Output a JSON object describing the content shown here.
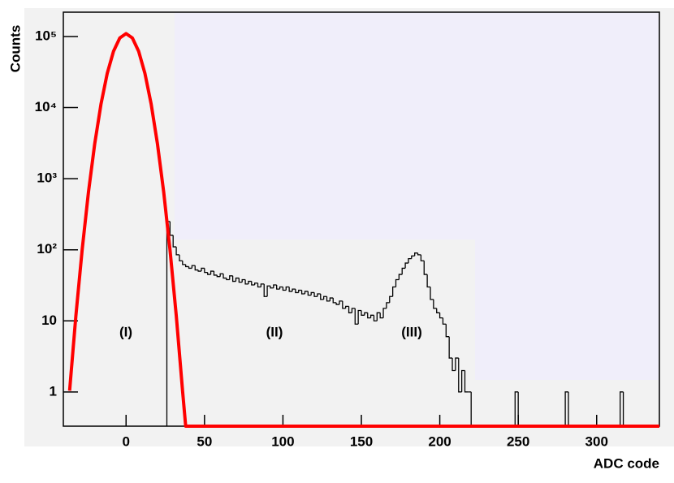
{
  "chart_data": {
    "type": "histogram",
    "x_label": "ADC code",
    "y_label": "Counts",
    "xlim": [
      -40,
      340
    ],
    "xticks": [
      0,
      50,
      100,
      150,
      200,
      250,
      300
    ],
    "ylim": [
      0.33,
      220000
    ],
    "log_y": true,
    "yticks": [
      1,
      10,
      {
        "value": 100,
        "label": "10²"
      },
      {
        "value": 1000,
        "label": "10³"
      },
      {
        "value": 10000,
        "label": "10⁴"
      },
      {
        "value": 100000,
        "label": "10⁵"
      }
    ],
    "annotations": [
      "(I)",
      "(II)",
      "(III)"
    ],
    "histogram": {
      "color": "#000000",
      "bins": [
        26,
        28,
        30,
        32,
        34,
        36,
        38,
        40,
        42,
        44,
        46,
        48,
        50,
        52,
        54,
        56,
        58,
        60,
        62,
        64,
        66,
        68,
        70,
        72,
        74,
        76,
        78,
        80,
        82,
        84,
        86,
        88,
        90,
        92,
        94,
        96,
        98,
        100,
        102,
        104,
        106,
        108,
        110,
        112,
        114,
        116,
        118,
        120,
        122,
        124,
        126,
        128,
        130,
        132,
        134,
        136,
        138,
        140,
        142,
        144,
        146,
        148,
        150,
        152,
        154,
        156,
        158,
        160,
        162,
        164,
        166,
        168,
        170,
        172,
        174,
        176,
        178,
        180,
        182,
        184,
        186,
        188,
        190,
        192,
        194,
        196,
        198,
        200,
        202,
        204,
        206,
        208,
        210,
        212,
        214,
        216,
        218,
        220,
        222,
        248,
        250,
        280,
        282,
        315,
        317,
        340
      ],
      "counts": [
        250,
        160,
        110,
        85,
        70,
        62,
        58,
        55,
        60,
        52,
        50,
        55,
        48,
        45,
        50,
        44,
        42,
        46,
        40,
        38,
        43,
        36,
        40,
        35,
        38,
        33,
        36,
        32,
        34,
        30,
        33,
        22,
        31,
        29,
        32,
        28,
        30,
        27,
        30,
        26,
        28,
        25,
        27,
        24,
        26,
        23,
        25,
        22,
        24,
        20,
        22,
        19,
        21,
        18,
        17,
        19,
        15,
        16,
        13,
        15,
        9,
        14,
        12,
        13,
        11,
        12,
        10,
        13,
        11,
        15,
        18,
        22,
        30,
        38,
        45,
        55,
        65,
        75,
        82,
        90,
        85,
        70,
        45,
        30,
        20,
        15,
        13,
        11,
        9,
        6,
        3,
        2,
        3,
        1,
        2,
        1,
        1,
        0,
        0,
        1,
        0,
        1,
        0,
        1,
        0
      ]
    },
    "fit": {
      "color": "#ff0000",
      "x": [
        -36,
        -32,
        -28,
        -24,
        -20,
        -16,
        -12,
        -8,
        -4,
        0,
        4,
        8,
        12,
        16,
        20,
        24,
        28,
        32,
        36,
        38,
        340
      ],
      "values": [
        1.04,
        11.8,
        100,
        643,
        3093,
        11190,
        30400,
        62100,
        95400,
        110000,
        95400,
        62100,
        30400,
        11190,
        3093,
        643,
        100,
        11.8,
        1.04,
        0.33,
        0.33
      ]
    }
  }
}
